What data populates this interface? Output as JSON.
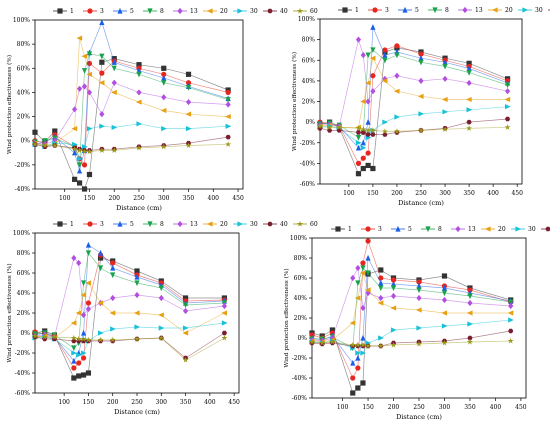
{
  "chart_data": [
    {
      "type": "line",
      "xlabel": "Distance (cm)",
      "ylabel": "Wind protection effectiveness (%)",
      "xlim": [
        40,
        460
      ],
      "ylim": [
        -40,
        100
      ],
      "xticks": [
        "100",
        "150",
        "200",
        "250",
        "300",
        "350",
        "400",
        "450"
      ],
      "yticks": [
        "-40%",
        "-20%",
        "0%",
        "20%",
        "40%",
        "60%",
        "80%",
        "100%"
      ],
      "legend": "top",
      "x": [
        40,
        60,
        80,
        120,
        130,
        140,
        150,
        175,
        200,
        250,
        300,
        350,
        430
      ],
      "series": [
        {
          "name": "1",
          "color": "#333333",
          "marker": "square",
          "values": [
            7,
            -1,
            8,
            -32,
            -35,
            -40,
            -28,
            65,
            68,
            63,
            60,
            55,
            42
          ]
        },
        {
          "name": "3",
          "color": "#e6261f",
          "marker": "circle",
          "values": [
            0,
            -2,
            5,
            -5,
            -15,
            -20,
            64,
            56,
            66,
            60,
            55,
            48,
            40
          ]
        },
        {
          "name": "5",
          "color": "#1a5fe6",
          "marker": "triangle-up",
          "values": [
            -3,
            -1,
            3,
            -10,
            -25,
            -8,
            73,
            98,
            65,
            58,
            52,
            45,
            35
          ]
        },
        {
          "name": "8",
          "color": "#18a34a",
          "marker": "triangle-down",
          "values": [
            -1,
            0,
            2,
            -5,
            -20,
            58,
            72,
            70,
            60,
            55,
            48,
            44,
            34
          ]
        },
        {
          "name": "13",
          "color": "#b24fe0",
          "marker": "diamond",
          "values": [
            -2,
            -3,
            0,
            26,
            43,
            45,
            40,
            22,
            48,
            40,
            36,
            32,
            30
          ]
        },
        {
          "name": "20",
          "color": "#e6a012",
          "marker": "triangle-left",
          "values": [
            -2,
            -4,
            -2,
            10,
            85,
            70,
            55,
            48,
            40,
            32,
            25,
            22,
            20
          ]
        },
        {
          "name": "30",
          "color": "#17c2d8",
          "marker": "triangle-right",
          "values": [
            -3,
            -5,
            -2,
            -3,
            -15,
            -5,
            10,
            12,
            11,
            14,
            10,
            10,
            12
          ]
        },
        {
          "name": "40",
          "color": "#7a1d2e",
          "marker": "hexagon",
          "values": [
            -3,
            -5,
            -4,
            -6,
            -7,
            -8,
            -8,
            -7,
            -7,
            -5,
            -4,
            -2,
            3
          ]
        },
        {
          "name": "60",
          "color": "#9a9a18",
          "marker": "star",
          "values": [
            -3,
            -4,
            -4,
            -7,
            -8,
            -9,
            -9,
            -8,
            -8,
            -6,
            -5,
            -4,
            -3
          ]
        }
      ]
    },
    {
      "type": "line",
      "xlabel": "Distance (cm)",
      "ylabel": "Wind protection effectiveness (%)",
      "xlim": [
        40,
        460
      ],
      "ylim": [
        -60,
        100
      ],
      "xticks": [
        "100",
        "150",
        "200",
        "250",
        "300",
        "350",
        "400",
        "450"
      ],
      "yticks": [
        "-60%",
        "-40%",
        "-20%",
        "0%",
        "20%",
        "40%",
        "60%",
        "80%",
        "100%"
      ],
      "legend": "top",
      "x": [
        40,
        60,
        80,
        120,
        130,
        140,
        150,
        175,
        200,
        250,
        300,
        350,
        430
      ],
      "series": [
        {
          "name": "1",
          "color": "#333333",
          "marker": "square",
          "values": [
            -2,
            0,
            -5,
            -50,
            -45,
            -42,
            -45,
            68,
            72,
            68,
            62,
            57,
            42
          ]
        },
        {
          "name": "3",
          "color": "#e6261f",
          "marker": "circle",
          "values": [
            0,
            -1,
            -3,
            -40,
            -35,
            -30,
            45,
            70,
            74,
            66,
            60,
            54,
            40
          ]
        },
        {
          "name": "5",
          "color": "#1a5fe6",
          "marker": "triangle-up",
          "values": [
            -1,
            -2,
            -4,
            -25,
            -20,
            0,
            92,
            65,
            68,
            62,
            58,
            52,
            38
          ]
        },
        {
          "name": "8",
          "color": "#18a34a",
          "marker": "triangle-down",
          "values": [
            -2,
            -1,
            -3,
            -15,
            -10,
            65,
            70,
            60,
            65,
            58,
            54,
            48,
            36
          ]
        },
        {
          "name": "13",
          "color": "#b24fe0",
          "marker": "diamond",
          "values": [
            -3,
            -2,
            -4,
            80,
            65,
            20,
            30,
            42,
            45,
            40,
            42,
            38,
            30
          ]
        },
        {
          "name": "20",
          "color": "#e6a012",
          "marker": "triangle-left",
          "values": [
            -4,
            -3,
            -5,
            -5,
            20,
            38,
            62,
            40,
            30,
            25,
            22,
            22,
            22
          ]
        },
        {
          "name": "30",
          "color": "#17c2d8",
          "marker": "triangle-right",
          "values": [
            -5,
            -4,
            -6,
            -20,
            -25,
            -15,
            -8,
            0,
            5,
            8,
            10,
            12,
            15
          ]
        },
        {
          "name": "40",
          "color": "#7a1d2e",
          "marker": "hexagon",
          "values": [
            -6,
            -8,
            -8,
            -10,
            -10,
            -12,
            -12,
            -12,
            -10,
            -8,
            -6,
            0,
            3
          ]
        },
        {
          "name": "60",
          "color": "#9a9a18",
          "marker": "star",
          "values": [
            -4,
            -5,
            -5,
            -6,
            -7,
            -8,
            -8,
            -9,
            -9,
            -8,
            -7,
            -6,
            -5
          ]
        }
      ]
    },
    {
      "type": "line",
      "xlabel": "Distance (cm)",
      "ylabel": "Wind protection effectiveness (%)",
      "xlim": [
        40,
        460
      ],
      "ylim": [
        -60,
        100
      ],
      "xticks": [
        "100",
        "150",
        "200",
        "250",
        "300",
        "350",
        "400",
        "450"
      ],
      "yticks": [
        "-60%",
        "-40%",
        "-20%",
        "0%",
        "20%",
        "40%",
        "60%",
        "80%",
        "100%"
      ],
      "legend": "top",
      "x": [
        40,
        60,
        80,
        120,
        130,
        140,
        150,
        175,
        200,
        250,
        300,
        350,
        430
      ],
      "series": [
        {
          "name": "1",
          "color": "#333333",
          "marker": "square",
          "values": [
            0,
            2,
            -2,
            -45,
            -43,
            -42,
            -40,
            75,
            72,
            62,
            52,
            35,
            35
          ]
        },
        {
          "name": "3",
          "color": "#e6261f",
          "marker": "circle",
          "values": [
            1,
            -1,
            -3,
            -35,
            -30,
            -25,
            30,
            78,
            70,
            58,
            50,
            32,
            33
          ]
        },
        {
          "name": "5",
          "color": "#1a5fe6",
          "marker": "triangle-up",
          "values": [
            -2,
            0,
            -4,
            -28,
            -20,
            0,
            88,
            80,
            65,
            56,
            48,
            30,
            32
          ]
        },
        {
          "name": "8",
          "color": "#18a34a",
          "marker": "triangle-down",
          "values": [
            -1,
            0,
            -2,
            -15,
            -10,
            50,
            80,
            65,
            58,
            50,
            45,
            28,
            30
          ]
        },
        {
          "name": "13",
          "color": "#b24fe0",
          "marker": "diamond",
          "values": [
            -3,
            -2,
            -4,
            75,
            70,
            18,
            24,
            30,
            35,
            38,
            35,
            22,
            27
          ]
        },
        {
          "name": "20",
          "color": "#e6a012",
          "marker": "triangle-left",
          "values": [
            -4,
            -3,
            -5,
            10,
            20,
            38,
            50,
            30,
            20,
            20,
            18,
            0,
            20
          ]
        },
        {
          "name": "30",
          "color": "#17c2d8",
          "marker": "triangle-right",
          "values": [
            -5,
            -4,
            -6,
            -20,
            -22,
            -20,
            -8,
            0,
            4,
            6,
            5,
            5,
            10
          ]
        },
        {
          "name": "40",
          "color": "#7a1d2e",
          "marker": "hexagon",
          "values": [
            -4,
            -6,
            -6,
            -8,
            -8,
            -8,
            -8,
            -8,
            -8,
            -6,
            -5,
            -25,
            0
          ]
        },
        {
          "name": "60",
          "color": "#9a9a18",
          "marker": "star",
          "values": [
            -3,
            -4,
            -4,
            -5,
            -6,
            -6,
            -7,
            -7,
            -7,
            -6,
            -5,
            -27,
            -5
          ]
        }
      ]
    },
    {
      "type": "line",
      "xlabel": "Distance (cm)",
      "ylabel": "Wind protection effectiveness (%)",
      "xlim": [
        40,
        460
      ],
      "ylim": [
        -60,
        100
      ],
      "xticks": [
        "100",
        "150",
        "200",
        "250",
        "300",
        "350",
        "400",
        "450"
      ],
      "yticks": [
        "-60%",
        "-40%",
        "-20%",
        "0%",
        "20%",
        "40%",
        "60%",
        "80%",
        "100%"
      ],
      "legend": "top",
      "x": [
        40,
        60,
        80,
        120,
        130,
        140,
        150,
        175,
        200,
        250,
        300,
        350,
        430
      ],
      "series": [
        {
          "name": "1",
          "color": "#333333",
          "marker": "square",
          "values": [
            5,
            2,
            8,
            -55,
            -50,
            -45,
            64,
            68,
            60,
            58,
            62,
            50,
            38
          ]
        },
        {
          "name": "3",
          "color": "#e6261f",
          "marker": "circle",
          "values": [
            3,
            0,
            5,
            -40,
            -30,
            75,
            97,
            60,
            58,
            56,
            52,
            48,
            36
          ]
        },
        {
          "name": "5",
          "color": "#1a5fe6",
          "marker": "triangle-up",
          "values": [
            0,
            -2,
            2,
            -25,
            -20,
            0,
            80,
            55,
            54,
            52,
            50,
            45,
            37
          ]
        },
        {
          "name": "8",
          "color": "#18a34a",
          "marker": "triangle-down",
          "values": [
            -1,
            -1,
            1,
            -10,
            55,
            70,
            65,
            50,
            50,
            48,
            45,
            42,
            36
          ]
        },
        {
          "name": "13",
          "color": "#b24fe0",
          "marker": "diamond",
          "values": [
            -2,
            -3,
            0,
            60,
            70,
            30,
            45,
            40,
            42,
            40,
            38,
            35,
            32
          ]
        },
        {
          "name": "20",
          "color": "#e6a012",
          "marker": "triangle-left",
          "values": [
            -3,
            -4,
            -2,
            15,
            40,
            65,
            48,
            35,
            30,
            28,
            25,
            25,
            25
          ]
        },
        {
          "name": "30",
          "color": "#17c2d8",
          "marker": "triangle-right",
          "values": [
            -4,
            -5,
            -3,
            -10,
            -15,
            -15,
            -5,
            0,
            8,
            10,
            12,
            14,
            18
          ]
        },
        {
          "name": "40",
          "color": "#7a1d2e",
          "marker": "hexagon",
          "values": [
            -5,
            -6,
            -5,
            -8,
            -8,
            -8,
            -8,
            -8,
            -5,
            -4,
            -3,
            0,
            7
          ]
        },
        {
          "name": "60",
          "color": "#9a9a18",
          "marker": "star",
          "values": [
            -4,
            -5,
            -4,
            -7,
            -7,
            -7,
            -8,
            -8,
            -7,
            -6,
            -5,
            -4,
            -3
          ]
        }
      ]
    }
  ]
}
